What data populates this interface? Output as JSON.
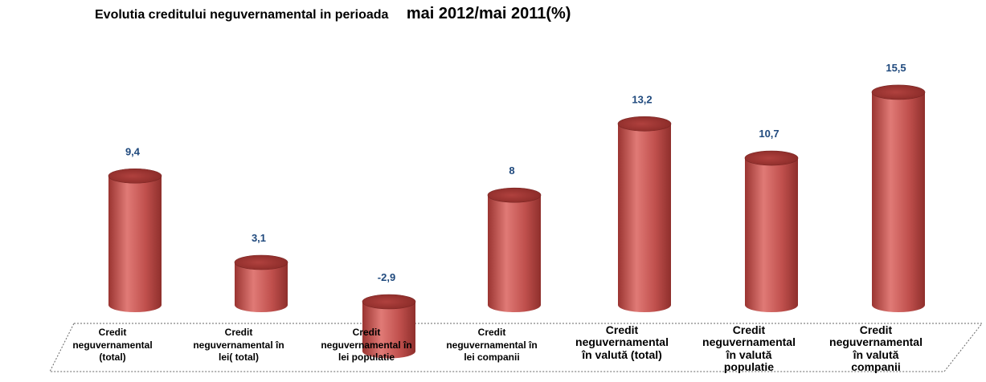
{
  "title": {
    "main": "Evolutia creditului neguvernamental in perioada",
    "period": "mai 2012/mai 2011(%)"
  },
  "chart_data": {
    "type": "bar",
    "title": "Evolutia creditului neguvernamental in perioada mai 2012/mai 2011(%)",
    "categories": [
      "Credit neguvernamental (total)",
      "Credit neguvernamental în lei( total)",
      "Credit neguvernamental în lei populatie",
      "Credit neguvernamental în lei companii",
      "Credit neguvernamental în valută (total)",
      "Credit neguvernamental în valută populatie",
      "Credit neguvernamental în valută companii"
    ],
    "category_lines": [
      [
        "Credit",
        "neguvernamental",
        "(total)"
      ],
      [
        "Credit",
        "neguvernamental în",
        "lei( total)"
      ],
      [
        "Credit",
        "neguvernamental în",
        "lei populatie"
      ],
      [
        "Credit",
        "neguvernamental în",
        "lei companii"
      ],
      [
        "Credit",
        "neguvernamental",
        "în valută (total)"
      ],
      [
        "Credit",
        "neguvernamental",
        "în valută",
        "populatie"
      ],
      [
        "Credit",
        "neguvernamental",
        "în valută",
        "companii"
      ]
    ],
    "values": [
      9.4,
      3.1,
      -2.9,
      8,
      13.2,
      10.7,
      15.5
    ],
    "value_labels": [
      "9,4",
      "3,1",
      "-2,9",
      "8",
      "13,2",
      "10,7",
      "15,5"
    ],
    "ylim": [
      -3,
      16
    ],
    "colors": {
      "bar": "#c0504d",
      "bar_light": "#e07a76",
      "bar_dark": "#8f2f2c",
      "label": "#1f497d"
    },
    "grid": false,
    "legend": "none"
  }
}
